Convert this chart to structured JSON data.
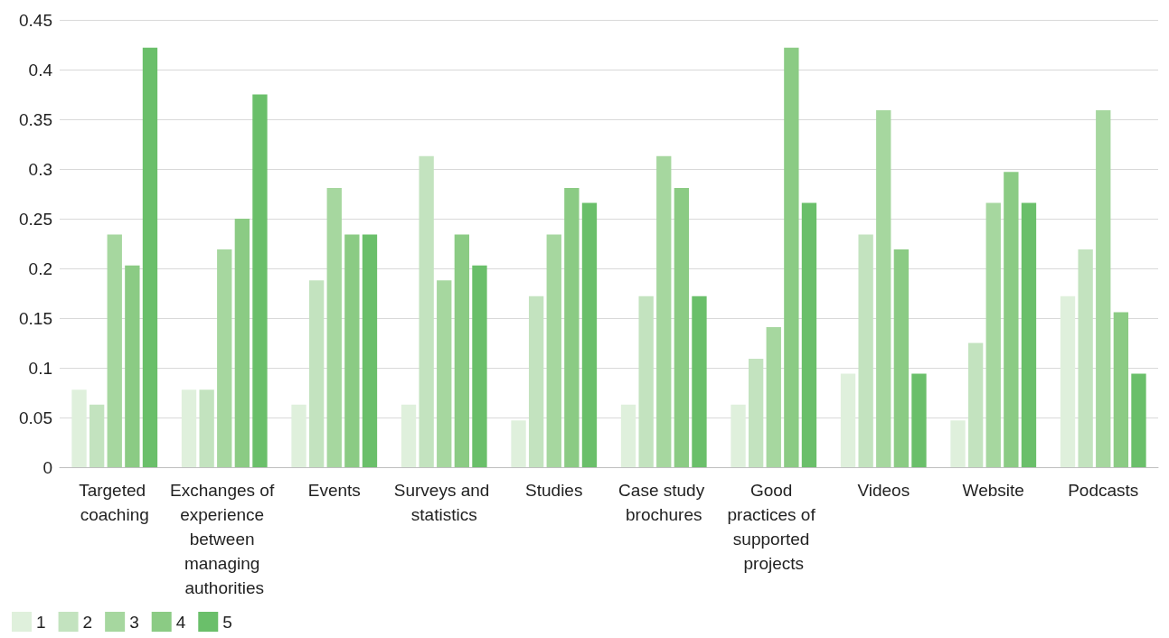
{
  "chart_data": {
    "type": "bar",
    "categories": [
      "Targeted coaching",
      "Exchanges of experience between managing authorities",
      "Events",
      "Surveys and statistics",
      "Studies",
      "Case study brochures",
      "Good practices of supported projects",
      "Videos",
      "Website",
      "Podcasts"
    ],
    "series": [
      {
        "name": "1",
        "color": "#dff0dc",
        "values": [
          0.078,
          0.078,
          0.063,
          0.063,
          0.047,
          0.063,
          0.063,
          0.094,
          0.047,
          0.172
        ]
      },
      {
        "name": "2",
        "color": "#c3e3bf",
        "values": [
          0.063,
          0.078,
          0.188,
          0.313,
          0.172,
          0.172,
          0.109,
          0.234,
          0.125,
          0.219
        ]
      },
      {
        "name": "3",
        "color": "#a6d79f",
        "values": [
          0.234,
          0.219,
          0.281,
          0.188,
          0.234,
          0.313,
          0.141,
          0.359,
          0.266,
          0.359
        ]
      },
      {
        "name": "4",
        "color": "#8bcb84",
        "values": [
          0.203,
          0.25,
          0.234,
          0.234,
          0.281,
          0.281,
          0.422,
          0.219,
          0.297,
          0.156
        ]
      },
      {
        "name": "5",
        "color": "#6abf6a",
        "values": [
          0.422,
          0.375,
          0.234,
          0.203,
          0.266,
          0.172,
          0.266,
          0.094,
          0.266,
          0.094
        ]
      }
    ],
    "ylim": [
      0,
      0.45
    ],
    "yticks": [
      0,
      0.05,
      0.1,
      0.15,
      0.2,
      0.25,
      0.3,
      0.35,
      0.4,
      0.45
    ],
    "grid": "y",
    "legend": "bottom left"
  }
}
